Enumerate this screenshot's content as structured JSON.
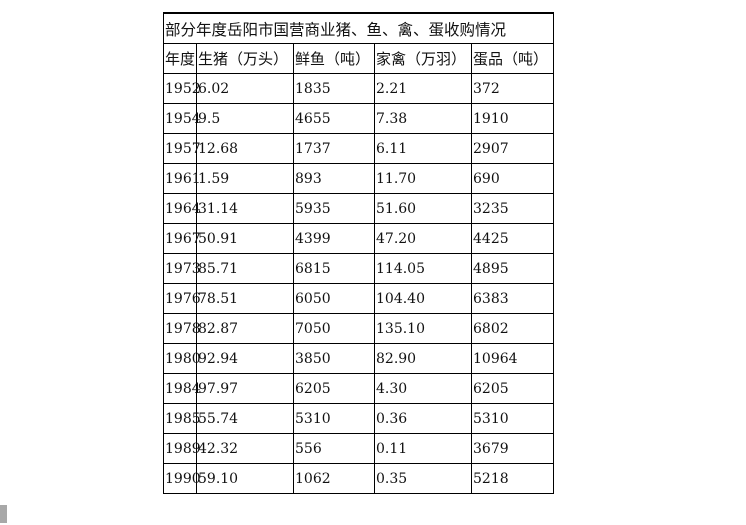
{
  "title": "部分年度岳阳市国营商业猪、鱼、禽、蛋收购情况",
  "headers": [
    "年度",
    "生猪（万头）",
    "鲜鱼（吨）",
    "家禽（万羽）",
    "蛋品（吨）"
  ],
  "rows": [
    [
      "1952",
      "6.02",
      "1835",
      "2.21",
      "372"
    ],
    [
      "1954",
      "9.5",
      "4655",
      "7.38",
      "1910"
    ],
    [
      "1957",
      "12.68",
      "1737",
      "6.11",
      "2907"
    ],
    [
      "1961",
      "1.59",
      "893",
      "11.70",
      "690"
    ],
    [
      "1964",
      "31.14",
      "5935",
      "51.60",
      "3235"
    ],
    [
      "1967",
      "50.91",
      "4399",
      "47.20",
      "4425"
    ],
    [
      "1973",
      "85.71",
      "6815",
      "114.05",
      "4895"
    ],
    [
      "1976",
      "78.51",
      "6050",
      "104.40",
      "6383"
    ],
    [
      "1978",
      "82.87",
      "7050",
      "135.10",
      "6802"
    ],
    [
      "1980",
      "92.94",
      "3850",
      "82.90",
      "10964"
    ],
    [
      "1984",
      "97.97",
      "6205",
      "4.30",
      "6205"
    ],
    [
      "1985",
      "55.74",
      "5310",
      "0.36",
      "5310"
    ],
    [
      "1989",
      "42.32",
      "556",
      "0.11",
      "3679"
    ],
    [
      "1990",
      "59.10",
      "1062",
      "0.35",
      "5218"
    ]
  ]
}
